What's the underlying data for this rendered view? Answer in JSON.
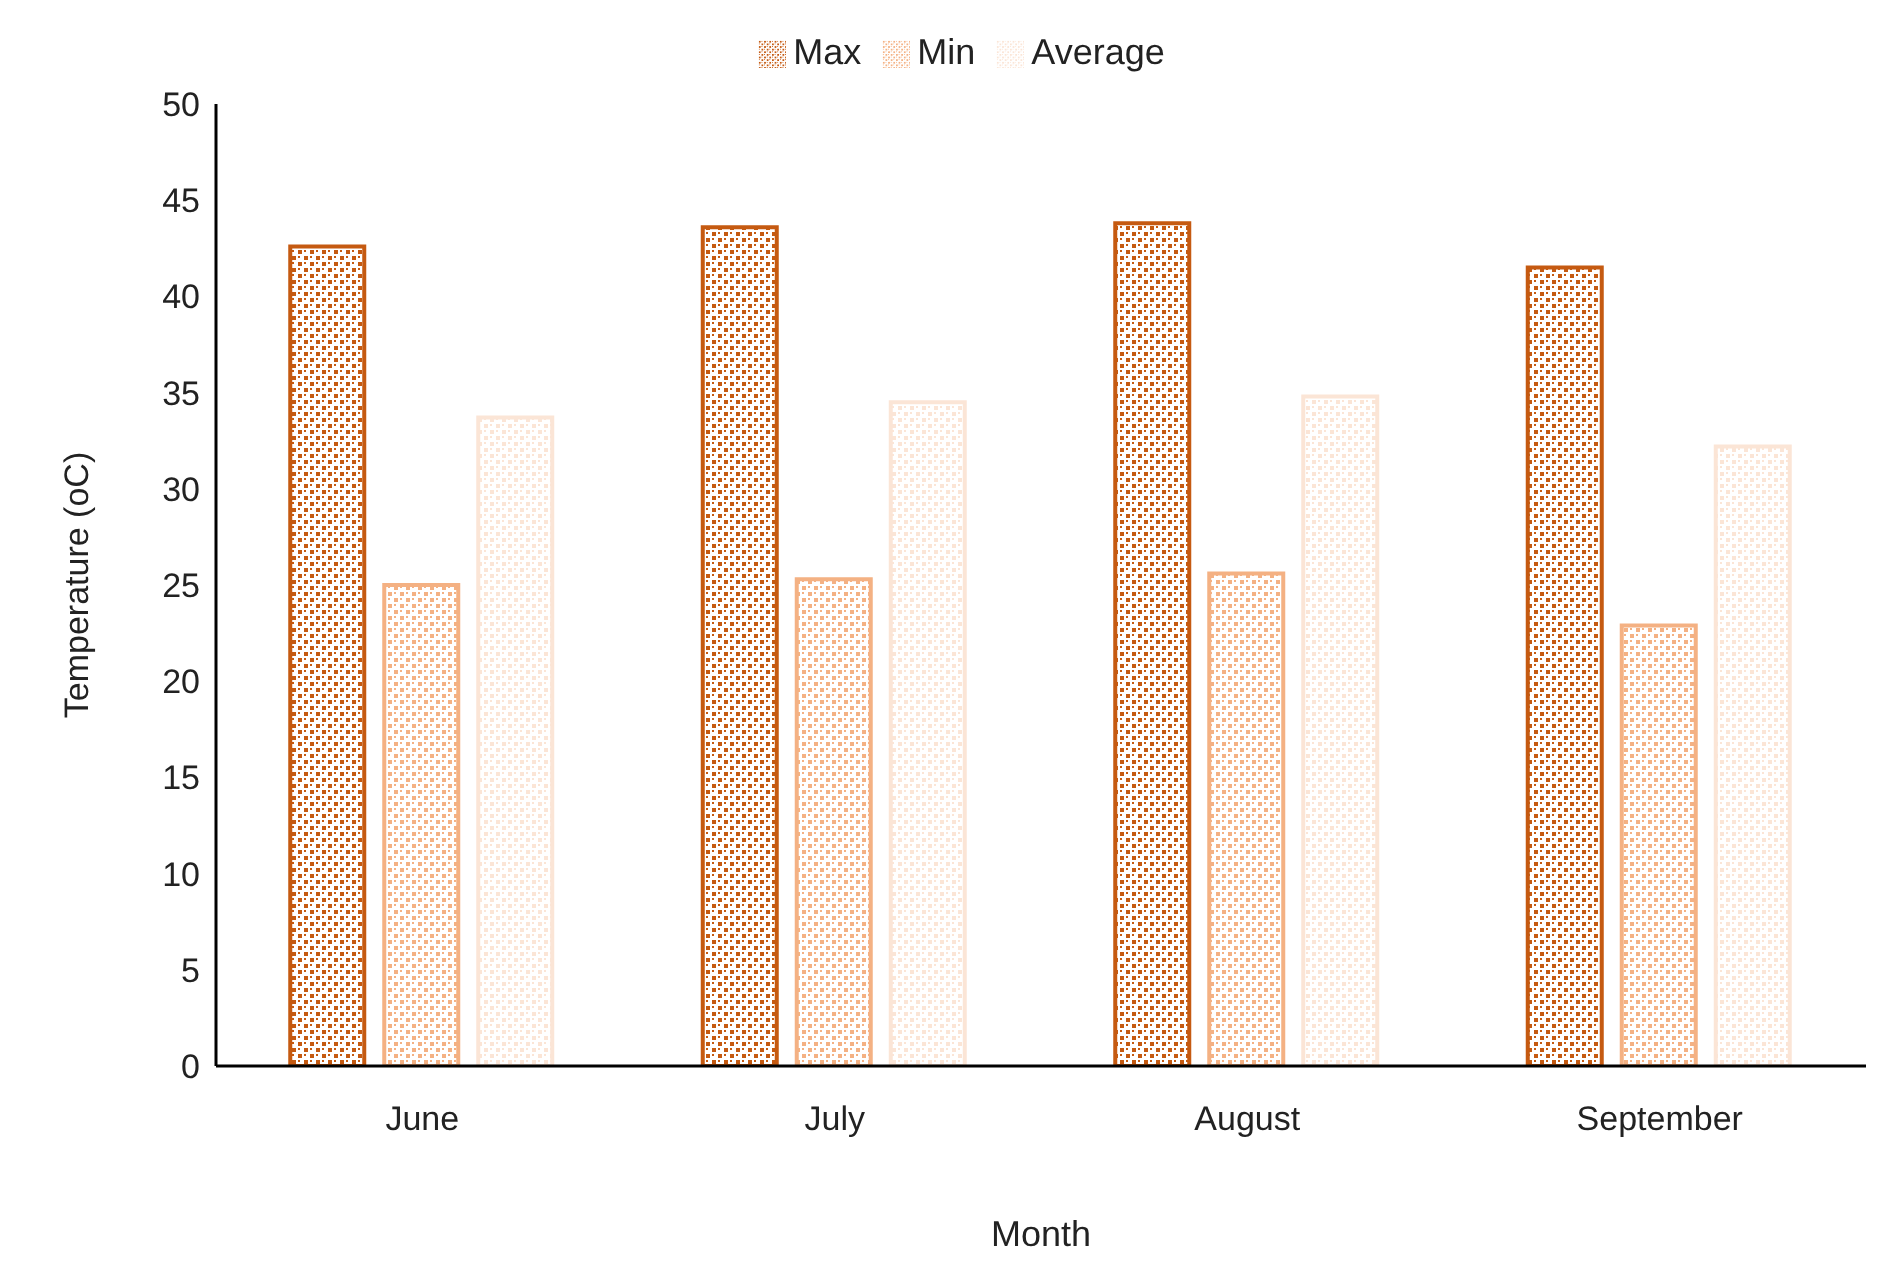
{
  "chart_data": {
    "type": "bar",
    "xlabel": "Month",
    "ylabel": "Temperature (oC)",
    "categories": [
      "June",
      "July",
      "August",
      "September"
    ],
    "series": [
      {
        "name": "Max",
        "color": "#c55a11",
        "values": [
          42.6,
          43.6,
          43.8,
          41.5
        ]
      },
      {
        "name": "Min",
        "color": "#f4b183",
        "values": [
          25.0,
          25.3,
          25.6,
          22.9
        ]
      },
      {
        "name": "Average",
        "color": "#fbe5d6",
        "values": [
          33.7,
          34.5,
          34.8,
          32.2
        ]
      }
    ],
    "ylim": [
      0,
      50
    ],
    "yticks": [
      0,
      5,
      10,
      15,
      20,
      25,
      30,
      35,
      40,
      45,
      50
    ],
    "grid": false,
    "legend": "top"
  }
}
